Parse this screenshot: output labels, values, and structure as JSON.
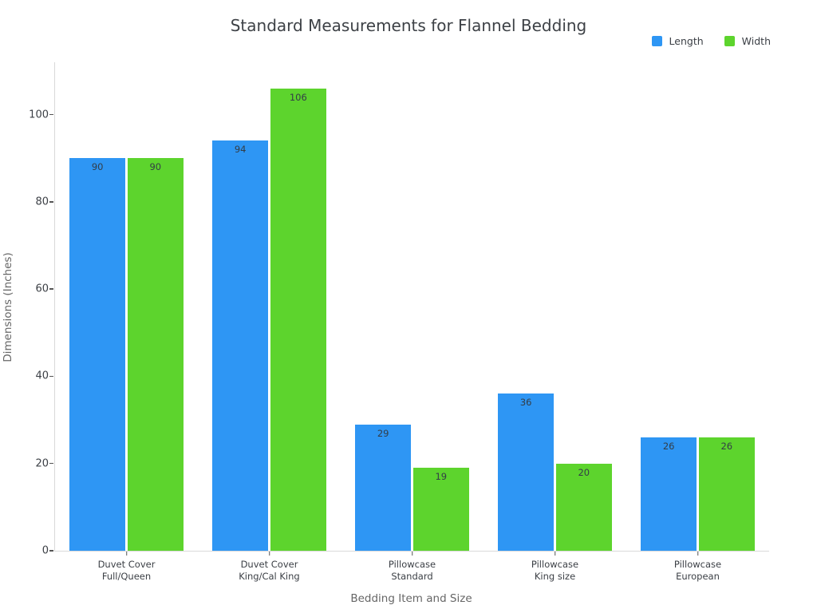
{
  "chart_data": {
    "type": "bar",
    "title": "Standard Measurements for Flannel Bedding",
    "xlabel": "Bedding Item and Size",
    "ylabel": "Dimensions (Inches)",
    "categories": [
      "Duvet Cover\nFull/Queen",
      "Duvet Cover\nKing/Cal King",
      "Pillowcase\nStandard",
      "Pillowcase\nKing size",
      "Pillowcase\nEuropean"
    ],
    "series": [
      {
        "name": "Length",
        "color": "#2e96f4",
        "values": [
          90,
          94,
          29,
          36,
          26
        ]
      },
      {
        "name": "Width",
        "color": "#5dd42d",
        "values": [
          90,
          106,
          19,
          20,
          26
        ]
      }
    ],
    "yticks": [
      0,
      20,
      40,
      60,
      80,
      100
    ],
    "ylim": [
      0,
      112
    ],
    "grid": false,
    "legend_position": "top-right",
    "value_labels": "inside-top",
    "colors": {
      "axis_line": "#d9d9d9",
      "tick_label": "#3b3f45",
      "axis_title": "#666666",
      "title": "#3d4146",
      "value_label": "#333d47"
    }
  }
}
